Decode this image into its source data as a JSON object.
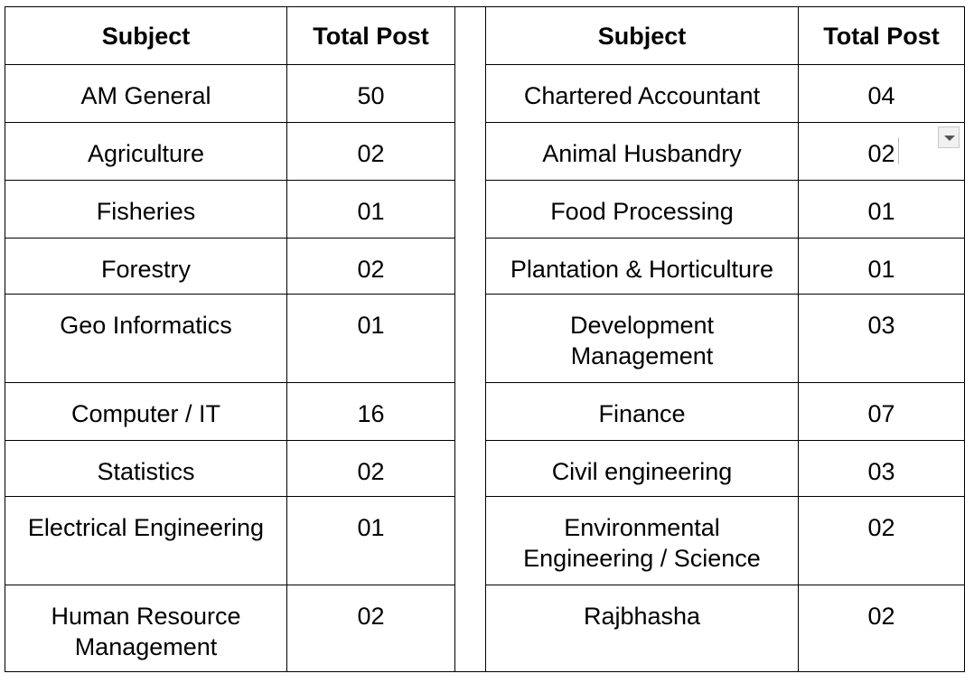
{
  "table": {
    "left": {
      "header_subject": "Subject",
      "header_total": "Total Post",
      "rows": [
        {
          "subject": "AM General",
          "total": "50"
        },
        {
          "subject": "Agriculture",
          "total": "02"
        },
        {
          "subject": "Fisheries",
          "total": "01"
        },
        {
          "subject": "Forestry",
          "total": "02"
        },
        {
          "subject": "Geo Informatics",
          "total": "01"
        },
        {
          "subject": "Computer / IT",
          "total": "16"
        },
        {
          "subject": "Statistics",
          "total": "02"
        },
        {
          "subject": "Electrical Engineering",
          "total": "01"
        },
        {
          "subject": "Human Resource Management",
          "total": "02"
        }
      ]
    },
    "right": {
      "header_subject": "Subject",
      "header_total": "Total Post",
      "rows": [
        {
          "subject": "Chartered Accountant",
          "total": "04"
        },
        {
          "subject": "Animal Husbandry",
          "total": "02"
        },
        {
          "subject": "Food Processing",
          "total": "01"
        },
        {
          "subject": "Plantation & Horticulture",
          "total": "01"
        },
        {
          "subject": "Development Management",
          "total": "03"
        },
        {
          "subject": "Finance",
          "total": "07"
        },
        {
          "subject": "Civil engineering",
          "total": "03"
        },
        {
          "subject": "Environmental Engineering / Science",
          "total": "02"
        },
        {
          "subject": "Rajbhasha",
          "total": "02"
        }
      ]
    }
  },
  "dropdown_icon": "chevron-down-icon"
}
